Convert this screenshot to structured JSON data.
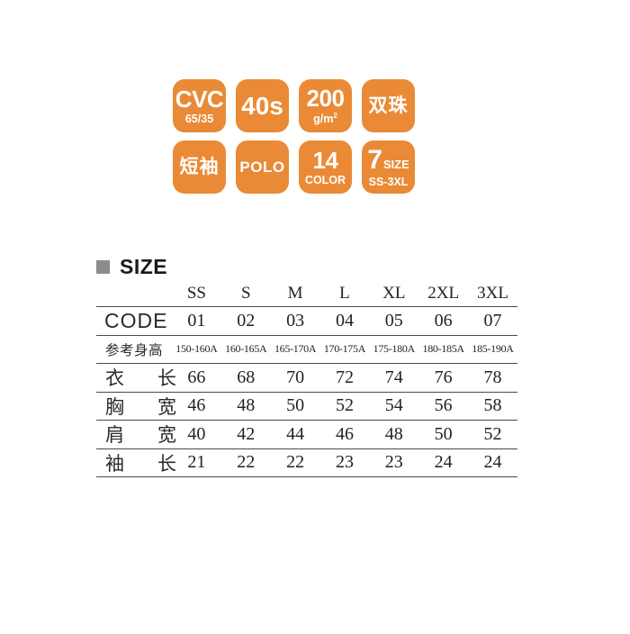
{
  "colors": {
    "badge_orange": "#EA8A36",
    "heading_square_gray": "#8C8C8C",
    "table_line": "#4a4a4a",
    "background": "#ffffff"
  },
  "badges": [
    {
      "name": "fabric",
      "main": "CVC",
      "sub": "65/35"
    },
    {
      "name": "yarn-count",
      "main": "40s"
    },
    {
      "name": "fabric-weight",
      "main": "200",
      "sub_base": "g/m",
      "sub_sup": "2"
    },
    {
      "name": "double-pearl",
      "main": "双珠"
    },
    {
      "name": "short-sleeve",
      "main": "短袖"
    },
    {
      "name": "polo",
      "main": "POLO"
    },
    {
      "name": "color-count",
      "main": "14",
      "sub": "COLOR"
    },
    {
      "name": "size-count",
      "main": "7",
      "side": "SIZE",
      "sub": "SS-3XL"
    }
  ],
  "section": {
    "title": "SIZE"
  },
  "table": {
    "size_headers": [
      "SS",
      "S",
      "M",
      "L",
      "XL",
      "2XL",
      "3XL"
    ],
    "rows": [
      {
        "label": "CODE",
        "values": [
          "01",
          "02",
          "03",
          "04",
          "05",
          "06",
          "07"
        ]
      },
      {
        "label": "参考身高",
        "values": [
          "150-160A",
          "160-165A",
          "165-170A",
          "170-175A",
          "175-180A",
          "180-185A",
          "185-190A"
        ]
      },
      {
        "label_chars": [
          "衣",
          "长"
        ],
        "values": [
          "66",
          "68",
          "70",
          "72",
          "74",
          "76",
          "78"
        ]
      },
      {
        "label_chars": [
          "胸",
          "宽"
        ],
        "values": [
          "46",
          "48",
          "50",
          "52",
          "54",
          "56",
          "58"
        ]
      },
      {
        "label_chars": [
          "肩",
          "宽"
        ],
        "values": [
          "40",
          "42",
          "44",
          "46",
          "48",
          "50",
          "52"
        ]
      },
      {
        "label_chars": [
          "袖",
          "长"
        ],
        "values": [
          "21",
          "22",
          "22",
          "23",
          "23",
          "24",
          "24"
        ]
      }
    ]
  }
}
